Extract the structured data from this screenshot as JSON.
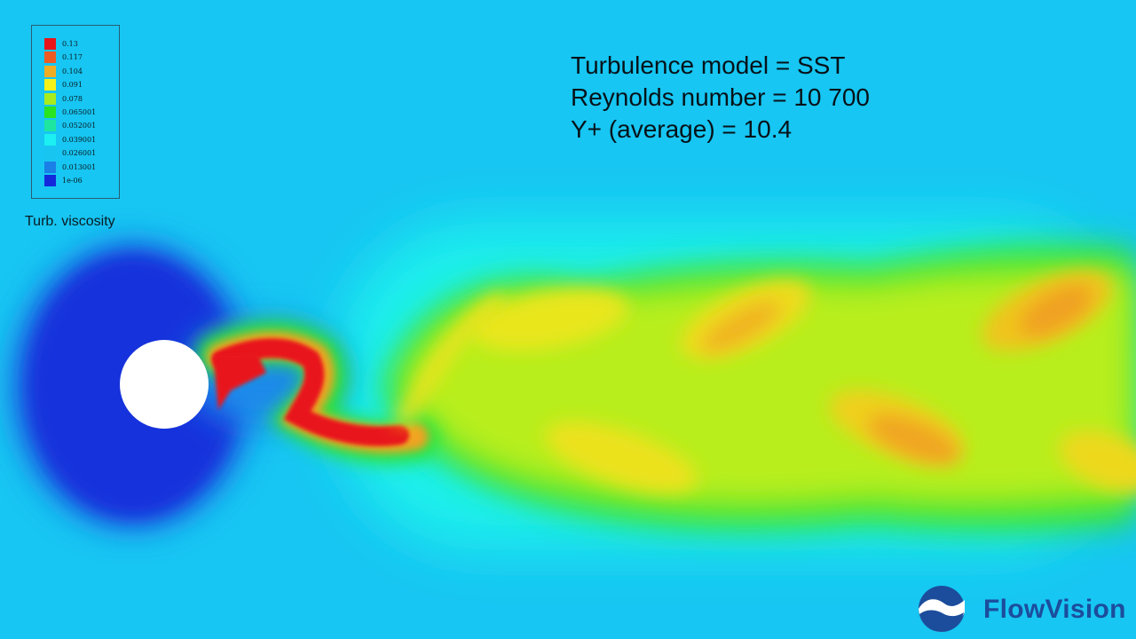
{
  "legend": {
    "title": "Turb. viscosity",
    "entries": [
      {
        "label": "0.13",
        "color": "#e8141a"
      },
      {
        "label": "0.117",
        "color": "#ee5a22"
      },
      {
        "label": "0.104",
        "color": "#f0ad24"
      },
      {
        "label": "0.091",
        "color": "#f5f21a"
      },
      {
        "label": "0.078",
        "color": "#a8ec1e"
      },
      {
        "label": "0.065001",
        "color": "#28e421"
      },
      {
        "label": "0.052001",
        "color": "#1ee6a0"
      },
      {
        "label": "0.039001",
        "color": "#1cf0f2"
      },
      {
        "label": "0.026001",
        "color": "#18c4f0"
      },
      {
        "label": "0.013001",
        "color": "#1a7fe6"
      },
      {
        "label": "1e-06",
        "color": "#1428dc"
      }
    ]
  },
  "info": {
    "turbulence_model": "Turbulence model = SST",
    "reynolds_number": "Reynolds number = 10 700",
    "y_plus": "Y+ (average) = 10.4"
  },
  "brand": {
    "name": "FlowVision",
    "logo_icon": "flowvision-wave-logo",
    "color": "#1c4d9c"
  },
  "colors": {
    "background": "#17c6f2",
    "cylinder": "#ffffff"
  }
}
